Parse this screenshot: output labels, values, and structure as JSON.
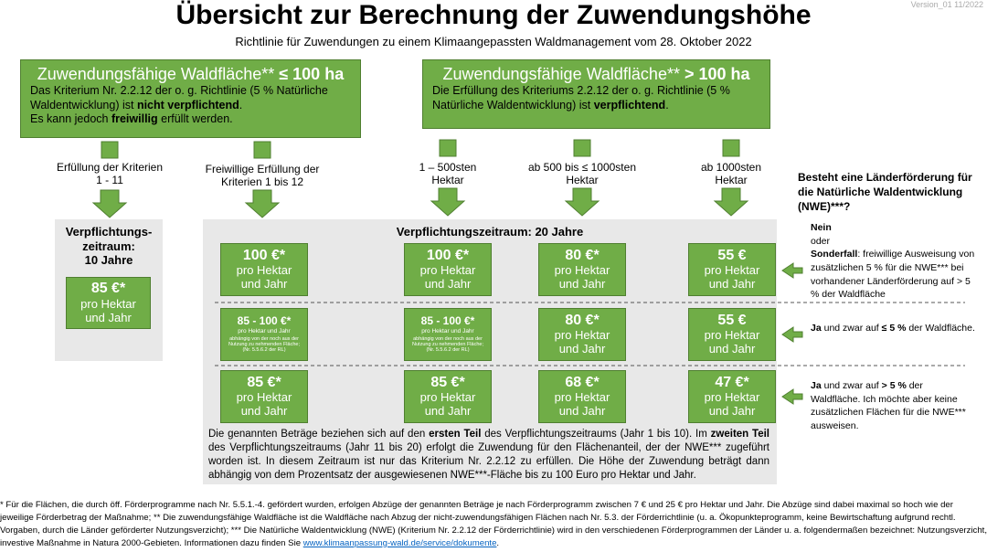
{
  "version": "Version_01 11/2022",
  "header": {
    "title": "Übersicht zur Berechnung der Zuwendungshöhe",
    "subtitle": "Richtlinie für Zuwendungen zu einem Klimaangepassten Waldmanagement vom 28. Oktober 2022"
  },
  "boxes": [
    {
      "heading": [
        {
          "t": "Zuwendungsfähige Waldfläche** "
        },
        {
          "t": "≤ 100 ha",
          "b": true
        }
      ],
      "body": [
        {
          "t": "Das Kriterium Nr. 2.2.12 der o. g. Richtlinie (5 % Natürliche Waldentwicklung) ist "
        },
        {
          "t": "nicht verpflichtend",
          "b": true
        },
        {
          "t": ".\nEs kann jedoch "
        },
        {
          "t": "freiwillig",
          "b": true
        },
        {
          "t": " erfüllt werden."
        }
      ]
    },
    {
      "heading": [
        {
          "t": "Zuwendungsfähige Waldfläche** "
        },
        {
          "t": "> 100 ha",
          "b": true
        }
      ],
      "body": [
        {
          "t": "Die Erfüllung des Kriteriums 2.2.12 der o. g. Richtlinie (5 % Natürliche Waldentwicklung) ist "
        },
        {
          "t": "verpflichtend",
          "b": true
        },
        {
          "t": "."
        }
      ]
    }
  ],
  "columns": [
    "Erfüllung der Kriterien\n1 - 11",
    "Freiwillige Erfüllung der\nKriterien 1 bis 12",
    "1 – 500sten\nHektar",
    "ab 500 bis ≤ 1000sten\nHektar",
    "ab 1000sten\nHektar"
  ],
  "short_term": {
    "title": "Verpflichtungs-\nzeitraum:\n10 Jahre",
    "amount": "85 €*",
    "unit": "pro Hektar\nund Jahr"
  },
  "grid": {
    "title": "Verpflichtungszeitraum: 20 Jahre",
    "rows": [
      [
        {
          "amount": "100 €*",
          "unit": "pro Hektar\nund Jahr"
        },
        {
          "amount": "100 €*",
          "unit": "pro Hektar\nund Jahr"
        },
        {
          "amount": "80 €*",
          "unit": "pro Hektar\nund Jahr"
        },
        {
          "amount": "55 €",
          "unit": "pro Hektar\nund Jahr"
        }
      ],
      [
        {
          "amount": "85 - 100 €*",
          "unit": "pro Hektar und Jahr",
          "note": "abhängig von der noch aus der Nutzung zu nehmenden Fläche; (Nr. 5.5.6.2 der RL)"
        },
        {
          "amount": "85 - 100 €*",
          "unit": "pro Hektar und Jahr",
          "note": "abhängig von der noch aus der Nutzung zu nehmenden Fläche; (Nr. 5.5.6.2 der RL)"
        },
        {
          "amount": "80 €*",
          "unit": "pro Hektar\nund Jahr"
        },
        {
          "amount": "55 €",
          "unit": "pro Hektar\nund Jahr"
        }
      ],
      [
        {
          "amount": "85 €*",
          "unit": "pro Hektar\nund Jahr"
        },
        {
          "amount": "85 €*",
          "unit": "pro Hektar\nund Jahr"
        },
        {
          "amount": "68 €*",
          "unit": "pro Hektar\nund Jahr"
        },
        {
          "amount": "47 €*",
          "unit": "pro Hektar\nund Jahr"
        }
      ]
    ],
    "note": [
      {
        "t": "Die genannten Beträge beziehen sich auf den "
      },
      {
        "t": "ersten Teil",
        "b": true
      },
      {
        "t": " des Verpflichtungszeitraums (Jahr 1 bis 10). Im "
      },
      {
        "t": "zweiten Teil",
        "b": true
      },
      {
        "t": " des Verpflichtungszeitraums (Jahr 11 bis 20) erfolgt die Zuwendung für den Flächenanteil, der der NWE*** zugeführt worden ist. In diesem Zeitraum ist nur das Kriterium Nr. 2.2.12 zu erfüllen. Die Höhe der Zuwendung beträgt dann abhängig von dem Prozentsatz der ausgewiesenen NWE***-Fläche bis zu 100 Euro pro Hektar und Jahr."
      }
    ]
  },
  "question": "Besteht eine Länderförderung für die Natürliche Waldentwicklung (NWE)***?",
  "answers": [
    [
      {
        "t": "Nein",
        "b": true
      },
      {
        "t": "\noder\n"
      },
      {
        "t": "Sonderfall",
        "b": true
      },
      {
        "t": ": freiwillige Ausweisung von zusätzlichen 5 % für die NWE*** bei vorhandener Länderförderung auf > 5 % der Waldfläche"
      }
    ],
    [
      {
        "t": "Ja",
        "b": true
      },
      {
        "t": " und zwar auf "
      },
      {
        "t": "≤ 5 %",
        "b": true
      },
      {
        "t": " der Waldfläche."
      }
    ],
    [
      {
        "t": "Ja",
        "b": true
      },
      {
        "t": " und zwar auf "
      },
      {
        "t": "> 5 %",
        "b": true
      },
      {
        "t": " der Waldfläche. Ich möchte aber keine zusätzlichen Flächen für die NWE*** ausweisen."
      }
    ]
  ],
  "footnote": [
    {
      "t": "* Für die Flächen, die durch öff. Förderprogramme nach Nr. 5.5.1.-4. gefördert wurden, erfolgen Abzüge der genannten Beträge je nach Förderprogramm zwischen 7 € und 25 € pro Hektar und Jahr. Die Abzüge sind dabei maximal so hoch wie der jeweilige Förderbetrag der Maßnahme; ** Die zuwendungsfähige Waldfläche ist die Waldfläche nach Abzug der nicht-zuwendungsfähigen Flächen nach Nr. 5.3. der Förderrichtlinie (u. a. Ökopunkteprogramm, keine Bewirtschaftung aufgrund rechtl. Vorgaben, durch die Länder geförderter Nutzungsverzicht); *** Die Natürliche Waldentwicklung (NWE) (Kriterium Nr. 2.2.12 der Förderrichtlinie) wird in den verschiedenen Förderprogrammen der Länder u. a. folgendermaßen bezeichnet: Nutzungsverzicht, investive Maßnahme in Natura 2000-Gebieten. Informationen dazu finden Sie "
    },
    {
      "t": "www.klimaanpassung-wald.de/service/dokumente",
      "link": true
    },
    {
      "t": "."
    }
  ]
}
